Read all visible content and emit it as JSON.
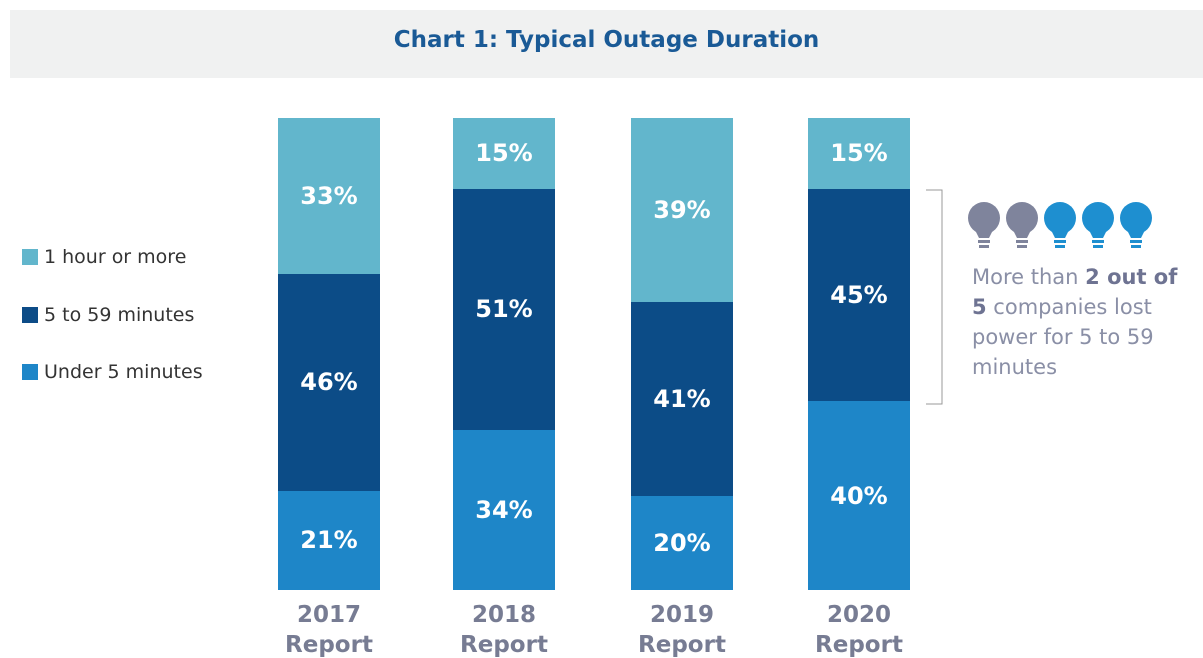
{
  "chart_data": {
    "type": "stacked_bar",
    "title": "Chart 1: Typical Outage Duration",
    "categories": [
      "2017 Report",
      "2018 Report",
      "2019 Report",
      "2020 Report"
    ],
    "series": [
      {
        "name": "1 hour or more",
        "color": "#62b6cc",
        "values": [
          33,
          15,
          39,
          15
        ],
        "value_labels": [
          "33%",
          "15%",
          "39%",
          "15%"
        ]
      },
      {
        "name": "5 to 59 minutes",
        "color": "#0c4c87",
        "values": [
          46,
          51,
          41,
          45
        ],
        "value_labels": [
          "46%",
          "51%",
          "41%",
          "45%"
        ]
      },
      {
        "name": "Under 5 minutes",
        "color": "#1e86c8",
        "values": [
          21,
          34,
          20,
          40
        ],
        "value_labels": [
          "21%",
          "34%",
          "20%",
          "40%"
        ]
      }
    ],
    "ylim": [
      0,
      100
    ],
    "annotation": [
      "More than ",
      "2 out of 5",
      " companies lost power for 5 to 59 minutes"
    ]
  }
}
